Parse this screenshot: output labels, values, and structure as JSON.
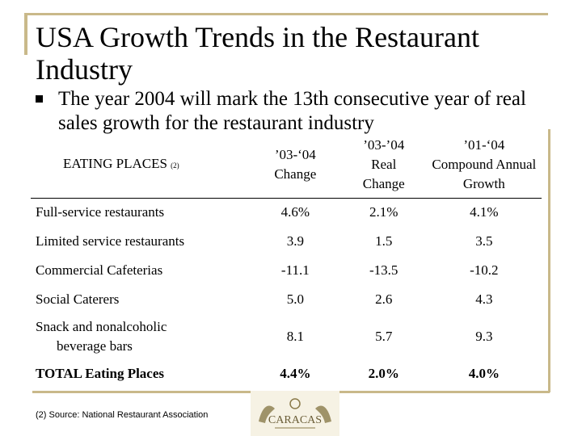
{
  "title": "USA Growth Trends in the Restaurant Industry",
  "bullet": "The year 2004 will mark the 13th consecutive year of real sales growth for the restaurant industry",
  "table": {
    "header": {
      "col0": "EATING PLACES",
      "col0_note": "(2)",
      "col1_l1": "’03-‘04",
      "col1_l2": "Change",
      "col2_l1": "’03-’04",
      "col2_l2": "Real",
      "col2_l3": "Change",
      "col3_l1": "’01-‘04",
      "col3_l2": "Compound Annual",
      "col3_l3": "Growth"
    },
    "rows": [
      {
        "label": "Full-service restaurants",
        "c1": "4.6%",
        "c2": "2.1%",
        "c3": "4.1%"
      },
      {
        "label": "Limited service restaurants",
        "c1": "3.9",
        "c2": "1.5",
        "c3": "3.5"
      },
      {
        "label": "Commercial Cafeterias",
        "c1": "-11.1",
        "c2": "-13.5",
        "c3": "-10.2"
      },
      {
        "label": "Social Caterers",
        "c1": "5.0",
        "c2": "2.6",
        "c3": "4.3"
      },
      {
        "label_l1": "Snack and nonalcoholic",
        "label_l2": "beverage bars",
        "c1": "8.1",
        "c2": "5.7",
        "c3": "9.3"
      },
      {
        "label": "TOTAL Eating Places",
        "c1": "4.4%",
        "c2": "2.0%",
        "c3": "4.0%"
      }
    ]
  },
  "footnote": "(2) Source: National Restaurant Association",
  "logo": {
    "text": "CARACAS",
    "icon": "caracas-logo-icon"
  }
}
